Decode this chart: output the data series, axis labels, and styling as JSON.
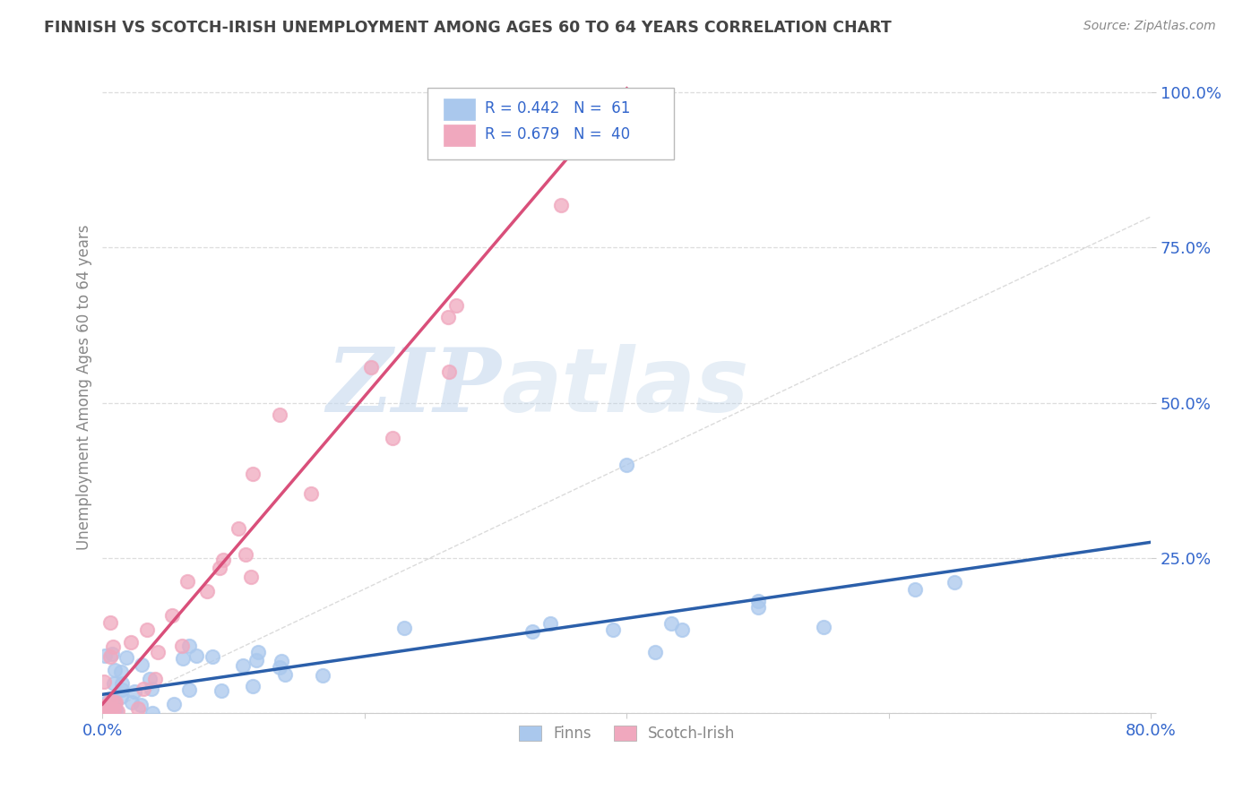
{
  "title": "FINNISH VS SCOTCH-IRISH UNEMPLOYMENT AMONG AGES 60 TO 64 YEARS CORRELATION CHART",
  "source_text": "Source: ZipAtlas.com",
  "ylabel": "Unemployment Among Ages 60 to 64 years",
  "xlim": [
    0.0,
    0.8
  ],
  "ylim": [
    0.0,
    1.05
  ],
  "xticks": [
    0.0,
    0.2,
    0.4,
    0.6,
    0.8
  ],
  "yticks": [
    0.0,
    0.25,
    0.5,
    0.75,
    1.0
  ],
  "xticklabels": [
    "0.0%",
    "",
    "",
    "",
    "80.0%"
  ],
  "yticklabels": [
    "",
    "25.0%",
    "50.0%",
    "75.0%",
    "100.0%"
  ],
  "legend_r1": "R = 0.442",
  "legend_n1": "N =  61",
  "legend_r2": "R = 0.679",
  "legend_n2": "N =  40",
  "legend_label1": "Finns",
  "legend_label2": "Scotch-Irish",
  "finns_color": "#aac8ed",
  "scotch_color": "#f0a8be",
  "finns_reg_color": "#2b5faa",
  "scotch_reg_color": "#d94f7a",
  "ref_line_color": "#cccccc",
  "background_color": "#ffffff",
  "watermark_zip": "ZIP",
  "watermark_atlas": "atlas",
  "title_color": "#444444",
  "axis_color": "#3366cc",
  "tick_color": "#888888",
  "legend_text_color": "#3366cc",
  "finns_N": 61,
  "scotch_N": 40
}
